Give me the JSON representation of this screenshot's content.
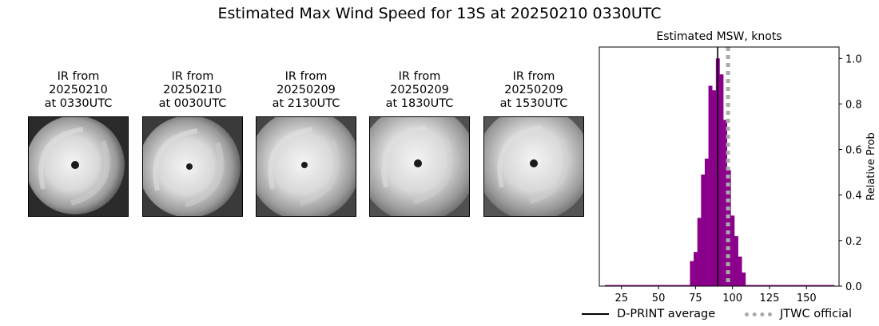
{
  "title": "Estimated Max Wind Speed for 13S at 20250210 0330UTC",
  "ir_panels": [
    {
      "line1": "IR from",
      "date": "20250210",
      "time": "at 0330UTC",
      "icon": "ir-satellite-image"
    },
    {
      "line1": "IR from",
      "date": "20250210",
      "time": "at 0030UTC",
      "icon": "ir-satellite-image"
    },
    {
      "line1": "IR from",
      "date": "20250209",
      "time": "at 2130UTC",
      "icon": "ir-satellite-image"
    },
    {
      "line1": "IR from",
      "date": "20250209",
      "time": "at 1830UTC",
      "icon": "ir-satellite-image"
    },
    {
      "line1": "IR from",
      "date": "20250209",
      "time": "at 1530UTC",
      "icon": "ir-satellite-image"
    }
  ],
  "chart_data": {
    "type": "bar",
    "title": "Estimated MSW, knots",
    "xlabel": "",
    "ylabel": "Relative Prob",
    "xlim": [
      10,
      172
    ],
    "ylim": [
      0,
      1.05
    ],
    "xticks": [
      25,
      50,
      75,
      100,
      125,
      150
    ],
    "yticks": [
      0.0,
      0.2,
      0.4,
      0.6,
      0.8,
      1.0
    ],
    "bar_color": "#8b008b",
    "bin_width": 2.5,
    "x": [
      15,
      17.5,
      20,
      22.5,
      25,
      27.5,
      30,
      32.5,
      35,
      37.5,
      40,
      42.5,
      45,
      47.5,
      50,
      52.5,
      55,
      57.5,
      60,
      62.5,
      65,
      67.5,
      70,
      72.5,
      75,
      77.5,
      80,
      82.5,
      85,
      87.5,
      90,
      92.5,
      95,
      97.5,
      100,
      102.5,
      105,
      107.5,
      110,
      112.5,
      115,
      117.5,
      120,
      122.5,
      125,
      127.5,
      130,
      132.5,
      135,
      137.5,
      140,
      142.5,
      145,
      147.5,
      150,
      152.5,
      155,
      157.5,
      160,
      162.5,
      165,
      167.5
    ],
    "values": [
      0.005,
      0.005,
      0.005,
      0.005,
      0.005,
      0.005,
      0.005,
      0.005,
      0.005,
      0.005,
      0.005,
      0.005,
      0.005,
      0.005,
      0.005,
      0.005,
      0.005,
      0.005,
      0.005,
      0.005,
      0.005,
      0.005,
      0.005,
      0.11,
      0.15,
      0.3,
      0.49,
      0.56,
      0.88,
      0.86,
      1.0,
      0.93,
      0.73,
      0.51,
      0.31,
      0.22,
      0.13,
      0.06,
      0.005,
      0.005,
      0.005,
      0.005,
      0.005,
      0.005,
      0.005,
      0.005,
      0.005,
      0.005,
      0.005,
      0.005,
      0.005,
      0.005,
      0.005,
      0.005,
      0.005,
      0.005,
      0.005,
      0.005,
      0.005,
      0.005,
      0.005,
      0.005
    ],
    "lines": [
      {
        "name": "D-PRINT average",
        "x": 90,
        "color": "#000000",
        "style": "solid"
      },
      {
        "name": "JTWC official",
        "x": 97,
        "color": "#aaaaaa",
        "style": "dotted"
      }
    ],
    "legend_position": "bottom"
  }
}
